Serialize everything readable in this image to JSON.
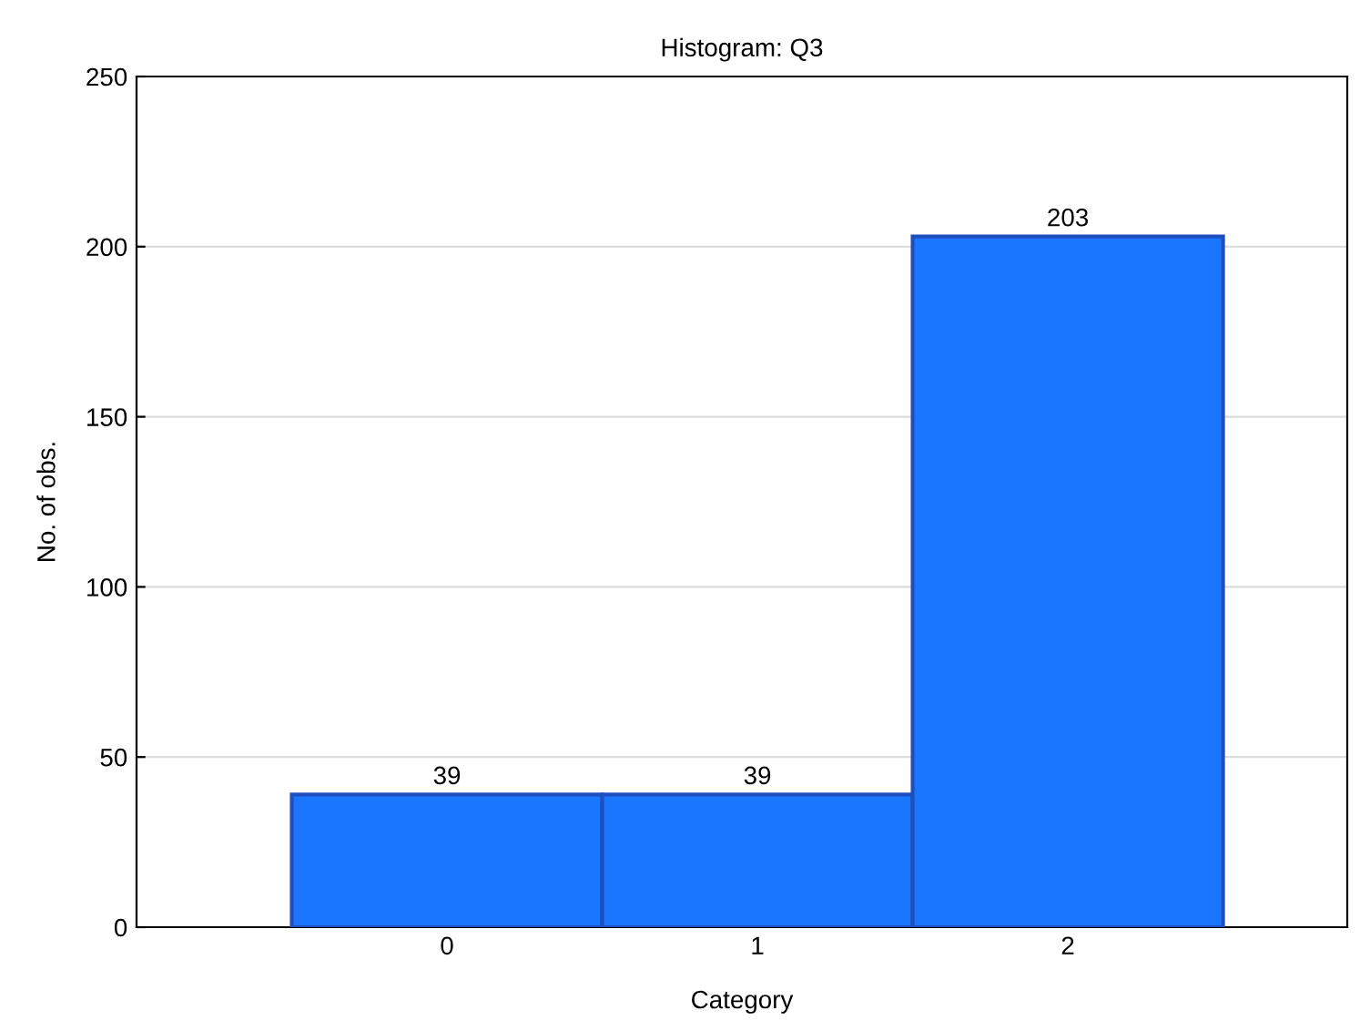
{
  "chart_data": {
    "type": "bar",
    "title": "Histogram: Q3",
    "xlabel": "Category",
    "ylabel": "No. of obs.",
    "categories": [
      "0",
      "1",
      "2"
    ],
    "values": [
      39,
      39,
      203
    ],
    "color": "#1a75ff",
    "ylim": [
      0,
      250
    ],
    "yticks": [
      0,
      50,
      100,
      150,
      200,
      250
    ],
    "grid": "y",
    "data_labels": true
  }
}
